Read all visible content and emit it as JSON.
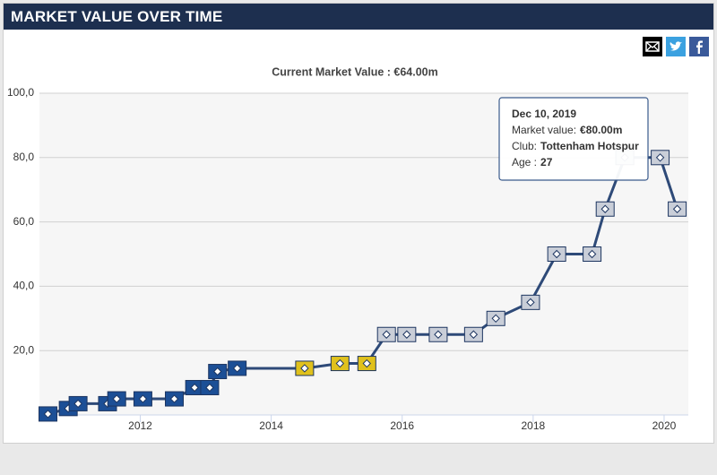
{
  "header": {
    "title": "MARKET VALUE OVER TIME"
  },
  "chart_data": {
    "type": "line",
    "subtitle": "Current Market Value : €64.00m",
    "x": [
      2010.59,
      2010.9,
      2011.05,
      2011.5,
      2011.64,
      2012.04,
      2012.52,
      2012.83,
      2013.06,
      2013.18,
      2013.48,
      2014.51,
      2015.05,
      2015.46,
      2015.76,
      2016.07,
      2016.55,
      2017.09,
      2017.43,
      2017.96,
      2018.36,
      2018.9,
      2019.1,
      2019.4,
      2019.94,
      2020.2
    ],
    "series": [
      {
        "color": "#2e4a78",
        "values": [
          0.3,
          2,
          3.5,
          3.5,
          5,
          5,
          5,
          8.5,
          8.5,
          13.5,
          14.5,
          14.5,
          16,
          16,
          25,
          25,
          25,
          25,
          30,
          35,
          50,
          50,
          64,
          80,
          80,
          64
        ],
        "point_colors": [
          "#1c4f96",
          "#1c4f96",
          "#1c4f96",
          "#1c4f96",
          "#1c4f96",
          "#1c4f96",
          "#1c4f96",
          "#1c4f96",
          "#1c4f96",
          "#1c4f96",
          "#1c4f96",
          "#e0c11c",
          "#e0c11c",
          "#e0c11c",
          "#c9ced8",
          "#c9ced8",
          "#c9ced8",
          "#c9ced8",
          "#c9ced8",
          "#c9ced8",
          "#c9ced8",
          "#c9ced8",
          "#c9ced8",
          "#c9ced8",
          "#c9ced8",
          "#c9ced8"
        ]
      }
    ],
    "xlim": [
      2010.46,
      2020.37
    ],
    "xticks": [
      2012,
      2014,
      2016,
      2018,
      2020
    ],
    "ylim": [
      0,
      100
    ],
    "yticks": [
      {
        "value": 20,
        "label": "20,0"
      },
      {
        "value": 40,
        "label": "40,0"
      },
      {
        "value": 60,
        "label": "60,0"
      },
      {
        "value": 80,
        "label": "80,0"
      },
      {
        "value": 100,
        "label": "100,0"
      }
    ],
    "grid": true,
    "tooltip": {
      "date": "Dec 10, 2019",
      "value_label": "Market value:",
      "value": "€80.00m",
      "club_label": "Club:",
      "club": "Tottenham Hotspur",
      "age_label": "Age :",
      "age": 27,
      "point": 24
    }
  }
}
